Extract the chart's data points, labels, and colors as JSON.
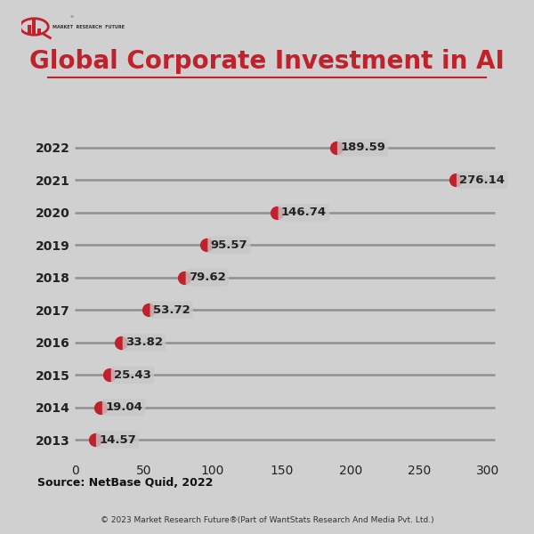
{
  "title": "Global Corporate Investment in AI",
  "years": [
    2022,
    2021,
    2020,
    2019,
    2018,
    2017,
    2016,
    2015,
    2014,
    2013
  ],
  "values": [
    189.59,
    276.14,
    146.74,
    95.57,
    79.62,
    53.72,
    33.82,
    25.43,
    19.04,
    14.57
  ],
  "xlim": [
    0,
    310
  ],
  "xticks": [
    0,
    50,
    100,
    150,
    200,
    250,
    300
  ],
  "dot_color": "#c0222c",
  "line_color": "#909090",
  "label_bg_color": "#c8c8c8",
  "title_color": "#c0222c",
  "source_text": "Source: NetBase Quid, 2022",
  "footer_text": "© 2023 Market Research Future®(Part of WantStats Research And Media Pvt. Ltd.)",
  "bg_color": "#d0d0d0",
  "plot_bg_color": "none",
  "title_fontsize": 20,
  "axis_fontsize": 10,
  "label_fontsize": 9.5,
  "year_fontsize": 10,
  "figsize": [
    6.0,
    6.0
  ],
  "dpi": 100
}
